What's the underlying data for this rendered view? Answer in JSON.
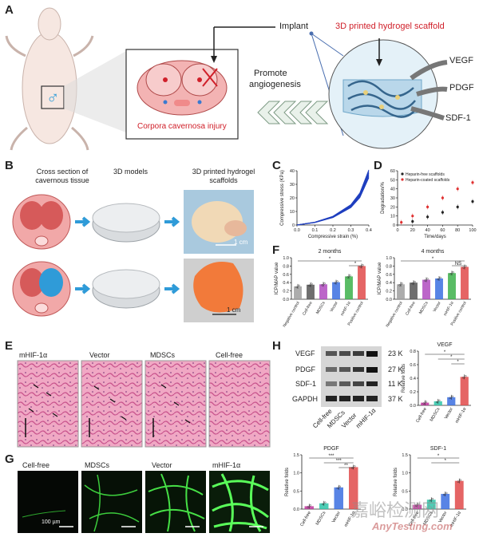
{
  "panels": {
    "A": "A",
    "B": "B",
    "C": "C",
    "D": "D",
    "E": "E",
    "F": "F",
    "G": "G",
    "H": "H"
  },
  "panel_a": {
    "implant": "Implant",
    "scaffold_title": "3D printed hydrogel scaffold",
    "promote": "Promote",
    "angiogenesis": "angiogenesis",
    "injury": "Corpora cavernosa injury",
    "factors": [
      "VEGF",
      "PDGF",
      "SDF-1"
    ],
    "colors": {
      "red": "#d0202a",
      "cav_pink": "#f3b3b3",
      "scaffold_blue": "#6fa7c9"
    }
  },
  "panel_b": {
    "col1": [
      "Cross section of",
      "cavernous tissue"
    ],
    "col2": "3D models",
    "col3": [
      "3D printed hydrogel",
      "scaffolds"
    ],
    "scale1": "1 cm",
    "scale2": "1 cm"
  },
  "panel_e": {
    "labels": [
      "mHIF-1α",
      "Vector",
      "MDSCs",
      "Cell-free"
    ]
  },
  "panel_g": {
    "labels": [
      "Cell-free",
      "MDSCs",
      "Vector",
      "mHIF-1α"
    ],
    "scale": "100 µm"
  },
  "panel_h_blot": {
    "rows": [
      "VEGF",
      "PDGF",
      "SDF-1",
      "GAPDH"
    ],
    "sizes": [
      "23 K",
      "27 K",
      "11 K",
      "37 K"
    ],
    "lanes": [
      "Cell-free",
      "MDSCs",
      "Vector",
      "mHIF-1α"
    ]
  },
  "watermark": {
    "cn": "嘉峪检测网",
    "en": "AnyTesting.com"
  },
  "chart_data": [
    {
      "id": "C",
      "type": "line",
      "xlabel": "Compressive strain (%)",
      "ylabel": "Compressive stress (KPa)",
      "xlim": [
        0.0,
        0.4
      ],
      "ylim": [
        0,
        40
      ],
      "xticks": [
        "0.0",
        "0.1",
        "0.2",
        "0.3",
        "0.4"
      ],
      "yticks": [
        "0",
        "10",
        "20",
        "30",
        "40"
      ],
      "series": [
        {
          "x": [
            0,
            0.1,
            0.2,
            0.3,
            0.35,
            0.4
          ],
          "y": [
            0,
            2,
            6,
            14,
            22,
            38
          ]
        }
      ]
    },
    {
      "id": "D",
      "type": "scatter",
      "xlabel": "Time/days",
      "ylabel": "Degradation/%",
      "xlim": [
        0,
        100
      ],
      "ylim": [
        0,
        60
      ],
      "xticks": [
        "0",
        "20",
        "40",
        "60",
        "80",
        "100"
      ],
      "yticks": [
        "0",
        "10",
        "20",
        "30",
        "40",
        "50",
        "60"
      ],
      "legend": "top-left",
      "series": [
        {
          "name": "Heparin-free scaffolds",
          "color": "#222222",
          "x": [
            20,
            40,
            60,
            80,
            100
          ],
          "y": [
            4,
            9,
            14,
            20,
            26
          ]
        },
        {
          "name": "Heparin-coated scaffolds",
          "color": "#e03030",
          "x": [
            5,
            20,
            40,
            60,
            80,
            100
          ],
          "y": [
            3,
            10,
            20,
            30,
            40,
            47
          ]
        }
      ]
    },
    {
      "id": "F1",
      "type": "bar",
      "title": "2 months",
      "ylabel": "ICP/MAP value",
      "ylim": [
        0,
        1.0
      ],
      "yticks": [
        "0.0",
        "0.2",
        "0.4",
        "0.6",
        "0.8",
        "1.0"
      ],
      "categories": [
        "Negative control",
        "Cell-free",
        "MDSCs",
        "Vector",
        "mHIF-1α",
        "Positive control"
      ],
      "values": [
        0.31,
        0.35,
        0.36,
        0.41,
        0.55,
        0.8
      ],
      "colors": [
        "#9e9e9e",
        "#555555",
        "#b04ac0",
        "#3b6ee0",
        "#3cb04a",
        "#e04a4a"
      ],
      "annotations": [
        "*",
        "*"
      ]
    },
    {
      "id": "F2",
      "type": "bar",
      "title": "4 months",
      "ylabel": "ICP/MAP value",
      "ylim": [
        0,
        1.0
      ],
      "yticks": [
        "0.0",
        "0.2",
        "0.4",
        "0.6",
        "0.8",
        "1.0"
      ],
      "categories": [
        "Negative control",
        "Cell-free",
        "MDSCs",
        "Vector",
        "mHIF-1α",
        "Positive control"
      ],
      "values": [
        0.36,
        0.4,
        0.47,
        0.5,
        0.63,
        0.78
      ],
      "colors": [
        "#9e9e9e",
        "#555555",
        "#b04ac0",
        "#3b6ee0",
        "#3cb04a",
        "#e04a4a"
      ],
      "annotations": [
        "*",
        "NS"
      ]
    },
    {
      "id": "H-VEGF",
      "type": "bar",
      "title": "VEGF",
      "ylabel": "Relative folds",
      "ylim": [
        0,
        0.8
      ],
      "yticks": [
        "0.0",
        "0.2",
        "0.4",
        "0.6",
        "0.8"
      ],
      "categories": [
        "Cell-free",
        "MDSCs",
        "Vector",
        "mHIF-1α"
      ],
      "values": [
        0.04,
        0.06,
        0.12,
        0.42
      ],
      "colors": [
        "#c0369c",
        "#2ec4a8",
        "#3b6ee0",
        "#e04a4a"
      ],
      "annotations": [
        "*",
        "*",
        "*"
      ]
    },
    {
      "id": "H-PDGF",
      "type": "bar",
      "title": "PDGF",
      "ylabel": "Relative folds",
      "ylim": [
        0,
        1.5
      ],
      "yticks": [
        "0.0",
        "0.5",
        "1.0",
        "1.5"
      ],
      "categories": [
        "Cell-free",
        "MDSCs",
        "Vector",
        "mHIF-1α"
      ],
      "values": [
        0.08,
        0.16,
        0.6,
        1.16
      ],
      "colors": [
        "#c0369c",
        "#2ec4a8",
        "#3b6ee0",
        "#e04a4a"
      ],
      "annotations": [
        "***",
        "***",
        "**"
      ]
    },
    {
      "id": "H-SDF1",
      "type": "bar",
      "title": "SDF-1",
      "ylabel": "Relative folds",
      "ylim": [
        0,
        1.5
      ],
      "yticks": [
        "0.0",
        "0.5",
        "1.0",
        "1.5"
      ],
      "categories": [
        "Cell-free",
        "MDSCs",
        "Vector",
        "mHIF-1α"
      ],
      "values": [
        0.12,
        0.26,
        0.42,
        0.78
      ],
      "colors": [
        "#c0369c",
        "#2ec4a8",
        "#3b6ee0",
        "#e04a4a"
      ],
      "annotations": [
        "*",
        "*"
      ]
    }
  ]
}
